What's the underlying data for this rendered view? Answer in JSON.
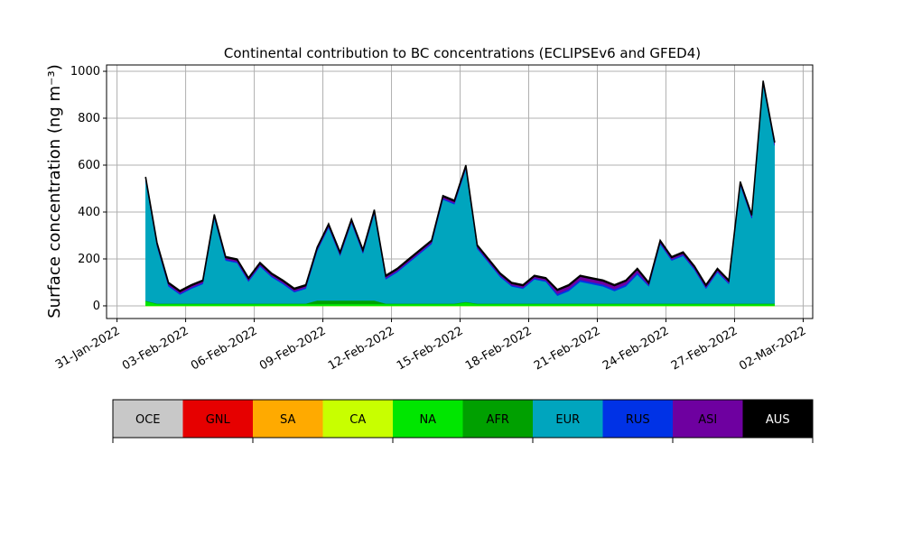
{
  "chart_data": {
    "type": "stacked_area",
    "title": "Continental contribution to BC concentrations (ECLIPSEv6 and GFED4)",
    "y_label": "Surface concentration (ng m⁻³)",
    "x": [
      "2022-02-01T06:00",
      "2022-02-01T18:00",
      "2022-02-02T06:00",
      "2022-02-02T18:00",
      "2022-02-03T06:00",
      "2022-02-03T18:00",
      "2022-02-04T06:00",
      "2022-02-04T18:00",
      "2022-02-05T06:00",
      "2022-02-05T18:00",
      "2022-02-06T06:00",
      "2022-02-06T18:00",
      "2022-02-07T06:00",
      "2022-02-07T18:00",
      "2022-02-08T06:00",
      "2022-02-08T18:00",
      "2022-02-09T06:00",
      "2022-02-09T18:00",
      "2022-02-10T06:00",
      "2022-02-10T18:00",
      "2022-02-11T06:00",
      "2022-02-11T18:00",
      "2022-02-12T06:00",
      "2022-02-12T18:00",
      "2022-02-13T06:00",
      "2022-02-13T18:00",
      "2022-02-14T06:00",
      "2022-02-14T18:00",
      "2022-02-15T06:00",
      "2022-02-15T18:00",
      "2022-02-16T06:00",
      "2022-02-16T18:00",
      "2022-02-17T06:00",
      "2022-02-17T18:00",
      "2022-02-18T06:00",
      "2022-02-18T18:00",
      "2022-02-19T06:00",
      "2022-02-19T18:00",
      "2022-02-20T06:00",
      "2022-02-20T18:00",
      "2022-02-21T06:00",
      "2022-02-21T18:00",
      "2022-02-22T06:00",
      "2022-02-22T18:00",
      "2022-02-23T06:00",
      "2022-02-23T18:00",
      "2022-02-24T06:00",
      "2022-02-24T18:00",
      "2022-02-25T06:00",
      "2022-02-25T18:00",
      "2022-02-26T06:00",
      "2022-02-26T18:00",
      "2022-02-27T06:00",
      "2022-02-27T18:00",
      "2022-02-28T06:00",
      "2022-02-28T18:00"
    ],
    "series": [
      {
        "name": "OCE",
        "color": "#c8c8c8",
        "values": [
          0,
          0,
          0,
          0,
          0,
          0,
          0,
          0,
          0,
          0,
          0,
          0,
          0,
          0,
          0,
          0,
          0,
          0,
          0,
          0,
          0,
          0,
          0,
          0,
          0,
          0,
          0,
          0,
          0,
          0,
          0,
          0,
          0,
          0,
          0,
          0,
          0,
          0,
          0,
          0,
          0,
          0,
          0,
          0,
          0,
          0,
          0,
          0,
          0,
          0,
          0,
          0,
          0,
          0,
          0,
          0
        ]
      },
      {
        "name": "GNL",
        "color": "#e60000",
        "values": [
          0,
          0,
          0,
          0,
          0,
          0,
          0,
          0,
          0,
          0,
          0,
          0,
          0,
          0,
          0,
          0,
          0,
          0,
          0,
          0,
          0,
          0,
          0,
          0,
          0,
          0,
          0,
          0,
          0,
          0,
          0,
          0,
          0,
          0,
          0,
          0,
          0,
          0,
          0,
          0,
          0,
          0,
          0,
          0,
          0,
          0,
          0,
          0,
          0,
          0,
          0,
          0,
          0,
          0,
          0,
          0
        ]
      },
      {
        "name": "SA",
        "color": "#ffaa00",
        "values": [
          0,
          0,
          0,
          0,
          0,
          0,
          0,
          0,
          0,
          0,
          0,
          0,
          0,
          0,
          0,
          0,
          0,
          0,
          0,
          0,
          0,
          0,
          0,
          0,
          0,
          0,
          0,
          0,
          0,
          0,
          0,
          0,
          0,
          0,
          0,
          0,
          0,
          0,
          0,
          0,
          0,
          0,
          0,
          0,
          0,
          0,
          0,
          0,
          0,
          0,
          0,
          0,
          0,
          0,
          0,
          0
        ]
      },
      {
        "name": "CA",
        "color": "#c8ff00",
        "values": [
          0,
          0,
          0,
          0,
          0,
          0,
          0,
          0,
          0,
          0,
          0,
          0,
          0,
          0,
          0,
          0,
          0,
          0,
          0,
          0,
          0,
          0,
          0,
          0,
          0,
          0,
          0,
          0,
          0,
          0,
          0,
          0,
          0,
          0,
          0,
          0,
          0,
          0,
          0,
          0,
          0,
          0,
          0,
          0,
          0,
          0,
          0,
          0,
          0,
          0,
          0,
          0,
          0,
          0,
          0,
          0
        ]
      },
      {
        "name": "NA",
        "color": "#00e600",
        "values": [
          20,
          8,
          8,
          8,
          8,
          8,
          8,
          8,
          8,
          8,
          8,
          8,
          8,
          8,
          8,
          8,
          8,
          8,
          8,
          8,
          8,
          8,
          8,
          8,
          8,
          8,
          8,
          8,
          15,
          8,
          8,
          8,
          8,
          8,
          8,
          8,
          8,
          8,
          8,
          8,
          8,
          8,
          8,
          8,
          8,
          8,
          8,
          8,
          8,
          8,
          8,
          8,
          8,
          8,
          8,
          8
        ]
      },
      {
        "name": "AFR",
        "color": "#00a000",
        "values": [
          2,
          2,
          2,
          2,
          2,
          2,
          2,
          2,
          2,
          2,
          2,
          2,
          2,
          2,
          2,
          15,
          15,
          15,
          15,
          15,
          15,
          2,
          2,
          2,
          2,
          2,
          2,
          2,
          2,
          2,
          2,
          2,
          2,
          2,
          2,
          2,
          2,
          2,
          2,
          2,
          2,
          2,
          2,
          2,
          2,
          2,
          2,
          2,
          2,
          2,
          2,
          2,
          2,
          2,
          2,
          2
        ]
      },
      {
        "name": "EUR",
        "color": "#00a5be",
        "values": [
          511,
          243,
          73,
          38,
          63,
          83,
          363,
          183,
          173,
          93,
          158,
          113,
          83,
          48,
          63,
          210,
          310,
          190,
          330,
          200,
          370,
          103,
          133,
          173,
          213,
          253,
          443,
          423,
          566,
          233,
          173,
          113,
          73,
          63,
          103,
          93,
          33,
          53,
          93,
          83,
          73,
          53,
          73,
          123,
          73,
          253,
          183,
          203,
          143,
          63,
          133,
          83,
          503,
          363,
          933,
          673
        ]
      },
      {
        "name": "RUS",
        "color": "#0032e6",
        "values": [
          5,
          5,
          5,
          5,
          5,
          5,
          5,
          5,
          5,
          5,
          5,
          5,
          5,
          5,
          5,
          5,
          5,
          5,
          5,
          5,
          5,
          5,
          5,
          5,
          5,
          5,
          5,
          5,
          5,
          5,
          5,
          5,
          5,
          5,
          5,
          5,
          8,
          8,
          8,
          8,
          8,
          8,
          8,
          8,
          5,
          5,
          5,
          5,
          5,
          5,
          5,
          5,
          5,
          5,
          5,
          5
        ]
      },
      {
        "name": "ASI",
        "color": "#6e00a0",
        "values": [
          8,
          8,
          8,
          8,
          8,
          8,
          8,
          8,
          8,
          8,
          8,
          8,
          8,
          8,
          8,
          8,
          8,
          8,
          8,
          8,
          8,
          8,
          8,
          8,
          8,
          8,
          8,
          8,
          8,
          8,
          8,
          8,
          8,
          8,
          8,
          8,
          15,
          15,
          15,
          15,
          15,
          15,
          15,
          15,
          8,
          8,
          8,
          8,
          8,
          8,
          8,
          8,
          8,
          8,
          8,
          8
        ]
      },
      {
        "name": "AUS",
        "color": "#000000",
        "values": [
          4,
          4,
          4,
          4,
          4,
          4,
          4,
          4,
          4,
          4,
          4,
          4,
          4,
          4,
          4,
          4,
          4,
          4,
          4,
          4,
          4,
          4,
          4,
          4,
          4,
          4,
          4,
          4,
          4,
          4,
          4,
          4,
          4,
          4,
          4,
          4,
          4,
          4,
          4,
          4,
          4,
          4,
          4,
          4,
          4,
          4,
          4,
          4,
          4,
          4,
          4,
          4,
          4,
          4,
          4,
          4
        ]
      }
    ],
    "xlim": [
      "2022-01-30T13:00",
      "2022-03-02T10:00"
    ],
    "xticks": [
      {
        "value": "2022-01-31",
        "label": "31-Jan-2022"
      },
      {
        "value": "2022-02-03",
        "label": "03-Feb-2022"
      },
      {
        "value": "2022-02-06",
        "label": "06-Feb-2022"
      },
      {
        "value": "2022-02-09",
        "label": "09-Feb-2022"
      },
      {
        "value": "2022-02-12",
        "label": "12-Feb-2022"
      },
      {
        "value": "2022-02-15",
        "label": "15-Feb-2022"
      },
      {
        "value": "2022-02-18",
        "label": "18-Feb-2022"
      },
      {
        "value": "2022-02-21",
        "label": "21-Feb-2022"
      },
      {
        "value": "2022-02-24",
        "label": "24-Feb-2022"
      },
      {
        "value": "2022-02-27",
        "label": "27-Feb-2022"
      },
      {
        "value": "2022-03-02",
        "label": "02-Mar-2022"
      }
    ],
    "ylim": [
      -54,
      1027
    ],
    "yticks": [
      0,
      200,
      400,
      600,
      800,
      1000
    ],
    "grid": true
  }
}
